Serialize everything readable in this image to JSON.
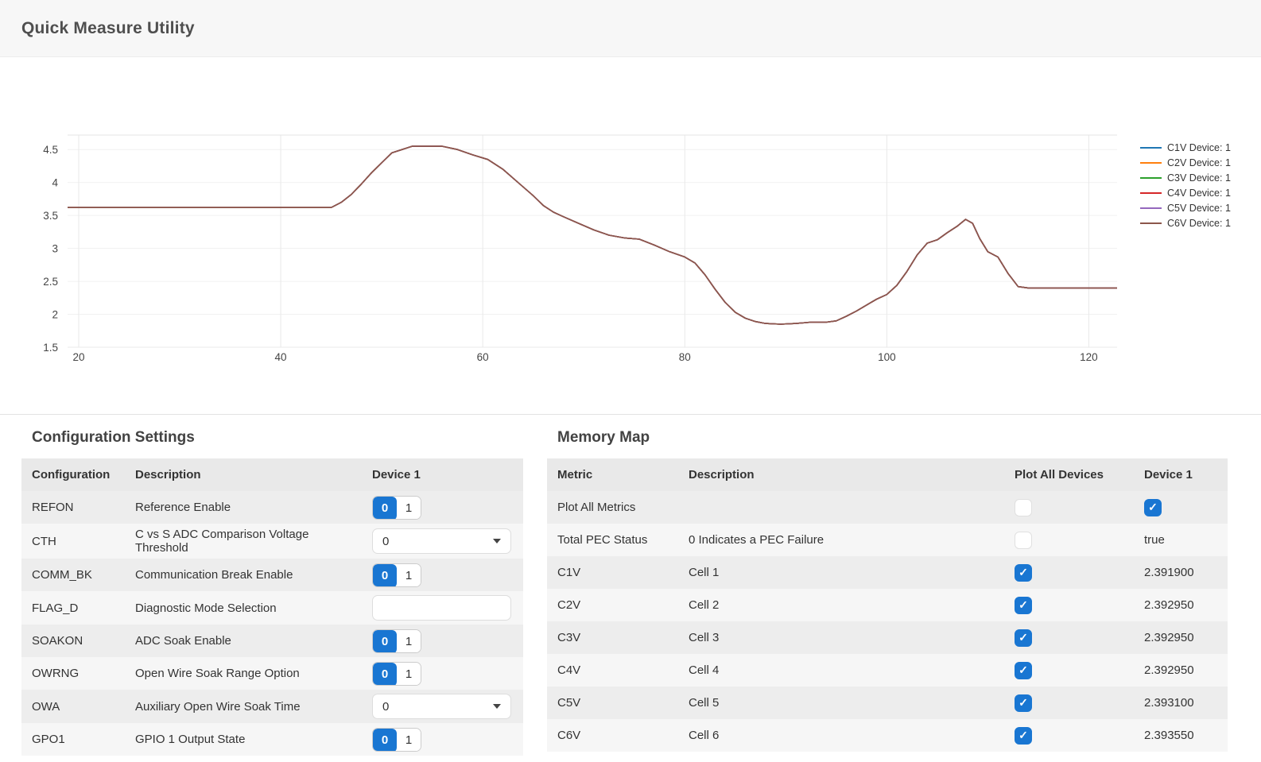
{
  "header": {
    "title": "Quick Measure Utility"
  },
  "colors": {
    "accent": "#1976d2",
    "line_main": "#8c564b"
  },
  "chart_data": {
    "type": "line",
    "title": "",
    "xlabel": "",
    "ylabel": "",
    "xlim": [
      18.9,
      122.8
    ],
    "ylim": [
      1.5,
      4.72
    ],
    "x_ticks": [
      20,
      40,
      60,
      80,
      100,
      120
    ],
    "y_ticks": [
      1.5,
      2,
      2.5,
      3,
      3.5,
      4,
      4.5
    ],
    "grid": true,
    "legend_position": "right",
    "x": [
      18.9,
      45,
      46,
      47,
      48,
      49,
      50,
      51,
      53,
      56,
      57.5,
      59,
      60.5,
      62,
      63.5,
      65,
      66,
      67,
      68,
      69.5,
      71,
      72.5,
      74,
      75.5,
      77,
      78.5,
      80,
      81,
      82,
      83,
      84,
      85,
      86,
      87,
      88,
      89.5,
      91,
      92.5,
      94,
      95,
      96,
      97,
      98,
      99,
      100,
      101,
      102,
      103,
      104,
      105,
      106,
      107,
      107.8,
      108.5,
      109.2,
      110,
      111,
      112,
      113,
      114,
      116,
      119,
      122.8
    ],
    "values": [
      3.62,
      3.62,
      3.7,
      3.82,
      3.98,
      4.15,
      4.3,
      4.45,
      4.55,
      4.55,
      4.5,
      4.42,
      4.35,
      4.2,
      4.0,
      3.8,
      3.65,
      3.55,
      3.48,
      3.38,
      3.28,
      3.2,
      3.16,
      3.14,
      3.05,
      2.95,
      2.87,
      2.78,
      2.6,
      2.38,
      2.18,
      2.03,
      1.94,
      1.89,
      1.86,
      1.85,
      1.86,
      1.88,
      1.88,
      1.9,
      1.97,
      2.05,
      2.14,
      2.23,
      2.3,
      2.44,
      2.65,
      2.9,
      3.08,
      3.13,
      3.24,
      3.34,
      3.44,
      3.38,
      3.15,
      2.95,
      2.87,
      2.62,
      2.42,
      2.4,
      2.4,
      2.4,
      2.4
    ],
    "series": [
      {
        "name": "C1V Device: 1",
        "color": "#1f77b4"
      },
      {
        "name": "C2V Device: 1",
        "color": "#ff7f0e"
      },
      {
        "name": "C3V Device: 1",
        "color": "#2ca02c"
      },
      {
        "name": "C4V Device: 1",
        "color": "#d62728"
      },
      {
        "name": "C5V Device: 1",
        "color": "#9467bd"
      },
      {
        "name": "C6V Device: 1",
        "color": "#8c564b"
      }
    ],
    "note": "All six series overlap; visible trace is the C6V brown line"
  },
  "config_panel": {
    "title": "Configuration Settings",
    "columns": [
      "Configuration",
      "Description",
      "Device 1"
    ],
    "rows": [
      {
        "name": "REFON",
        "description": "Reference Enable",
        "control": "segment",
        "value": "0",
        "options": [
          "0",
          "1"
        ]
      },
      {
        "name": "CTH",
        "description": "C vs S ADC Comparison Voltage Threshold",
        "control": "select",
        "value": "0"
      },
      {
        "name": "COMM_BK",
        "description": "Communication Break Enable",
        "control": "segment",
        "value": "0",
        "options": [
          "0",
          "1"
        ]
      },
      {
        "name": "FLAG_D",
        "description": "Diagnostic Mode Selection",
        "control": "input",
        "value": ""
      },
      {
        "name": "SOAKON",
        "description": "ADC Soak Enable",
        "control": "segment",
        "value": "0",
        "options": [
          "0",
          "1"
        ]
      },
      {
        "name": "OWRNG",
        "description": "Open Wire Soak Range Option",
        "control": "segment",
        "value": "0",
        "options": [
          "0",
          "1"
        ]
      },
      {
        "name": "OWA",
        "description": "Auxiliary Open Wire Soak Time",
        "control": "select",
        "value": "0"
      },
      {
        "name": "GPO1",
        "description": "GPIO 1 Output State",
        "control": "segment",
        "value": "0",
        "options": [
          "0",
          "1"
        ]
      }
    ]
  },
  "memory_panel": {
    "title": "Memory Map",
    "columns": [
      "Metric",
      "Description",
      "Plot All Devices",
      "Device 1"
    ],
    "rows": [
      {
        "metric": "Plot All Metrics",
        "description": "",
        "plot_all_checked": false,
        "device1_type": "checkbox",
        "device1_checked": true
      },
      {
        "metric": "Total PEC Status",
        "description": "0 Indicates a PEC Failure",
        "plot_all_checked": false,
        "device1_type": "text",
        "device1_value": "true"
      },
      {
        "metric": "C1V",
        "description": "Cell 1",
        "plot_all_checked": true,
        "device1_type": "text",
        "device1_value": "2.391900"
      },
      {
        "metric": "C2V",
        "description": "Cell 2",
        "plot_all_checked": true,
        "device1_type": "text",
        "device1_value": "2.392950"
      },
      {
        "metric": "C3V",
        "description": "Cell 3",
        "plot_all_checked": true,
        "device1_type": "text",
        "device1_value": "2.392950"
      },
      {
        "metric": "C4V",
        "description": "Cell 4",
        "plot_all_checked": true,
        "device1_type": "text",
        "device1_value": "2.392950"
      },
      {
        "metric": "C5V",
        "description": "Cell 5",
        "plot_all_checked": true,
        "device1_type": "text",
        "device1_value": "2.393100"
      },
      {
        "metric": "C6V",
        "description": "Cell 6",
        "plot_all_checked": true,
        "device1_type": "text",
        "device1_value": "2.393550"
      }
    ]
  }
}
